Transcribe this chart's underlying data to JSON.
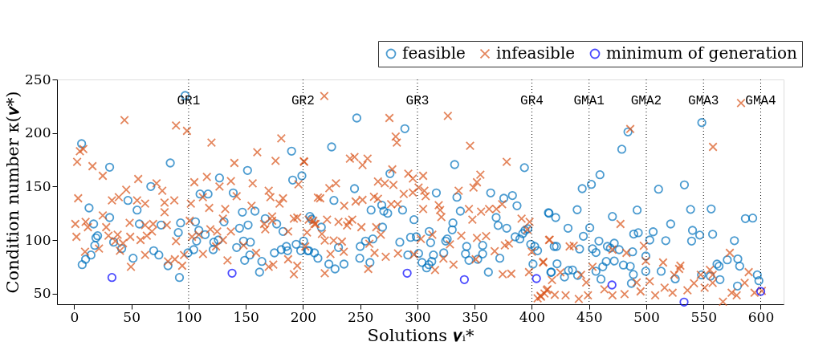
{
  "chart_data": {
    "type": "scatter",
    "xlabel": "Solutions 𝝂ᵢ*",
    "ylabel": "Condition number κ(𝝂*)",
    "xlim": [
      -15,
      620
    ],
    "ylim": [
      40,
      250
    ],
    "xticks": [
      0,
      50,
      100,
      150,
      200,
      250,
      300,
      350,
      400,
      450,
      500,
      550,
      600
    ],
    "yticks": [
      50,
      100,
      150,
      200,
      250
    ],
    "grid": false,
    "legend": "top right",
    "series": [
      {
        "name": "feasible",
        "color": "#0072bd",
        "marker": "circle",
        "x": [
          6.5,
          31,
          84,
          97,
          13,
          47,
          55,
          67,
          57,
          17,
          31,
          20.5,
          19,
          18,
          34.5,
          41.5,
          14.7,
          10,
          7,
          51.5,
          69.5,
          74,
          82,
          92,
          76,
          93,
          91,
          99.5,
          104.5,
          106,
          109,
          107,
          114.5,
          110,
          117,
          122,
          121.5,
          126,
          131,
          127,
          139,
          147,
          144.5,
          151.5,
          152,
          158,
          142,
          148,
          154,
          149,
          153.5,
          164,
          162,
          167,
          177,
          182.5,
          175,
          181,
          185.5,
          186.5,
          190,
          191,
          199,
          194,
          200.5,
          198,
          206,
          205,
          247,
          225,
          289,
          276,
          245,
          227,
          207.5,
          216,
          204,
          210,
          213,
          222.6,
          228,
          235.8,
          231,
          250,
          254.6,
          261,
          249.6,
          258.5,
          259.5,
          268.8,
          270.6,
          274,
          269.5,
          287,
          297,
          284.6,
          294,
          299,
          291.6,
          301,
          304,
          308,
          310,
          312.5,
          314,
          311.5,
          310.3,
          316.5,
          323,
          324.7,
          326,
          331,
          330.4,
          334.5,
          337.5,
          332.5,
          343,
          342,
          345,
          352.7,
          357,
          357,
          362,
          364,
          368.8,
          370.5,
          378,
          372,
          375.5,
          383,
          387,
          385.4,
          389.5,
          392,
          394,
          396.5,
          399,
          402.5,
          405,
          401,
          393.5,
          415,
          419.5,
          417,
          548.5,
          484,
          478.6,
          459.5,
          452,
          444,
          533.3,
          510.7,
          439.6,
          492,
          538.7,
          556.7,
          414.5,
          420.8,
          470.4,
          450.6,
          431.6,
          445,
          521.3,
          540.4,
          546.7,
          558,
          586.6,
          593,
          489,
          493,
          506,
          503,
          517,
          539.6,
          577,
          421.5,
          441.7,
          453,
          456,
          458.6,
          466,
          468.6,
          472,
          476.3,
          472,
          465,
          462,
          488,
          499.6,
          480,
          486,
          488.7,
          487,
          460.4,
          456,
          440,
          435.5,
          432,
          428.5,
          422,
          416.6,
          499.5,
          513,
          525.3,
          561.8,
          563.6,
          564.4,
          570.8,
          580,
          579.7,
          581.6,
          548.3,
          556,
          597,
          598.4
        ],
        "values": [
          190,
          168,
          172,
          235,
          130,
          137,
          128,
          150,
          115,
          115,
          121,
          104,
          102,
          95,
          98,
          92,
          86,
          82,
          77,
          83,
          90,
          86,
          76,
          65,
          114,
          116,
          107,
          88,
          91,
          117,
          109,
          99,
          105,
          143,
          143,
          98,
          91,
          100,
          117,
          158,
          144,
          126,
          111,
          165,
          114,
          127,
          93,
          99,
          98,
          81,
          86,
          80,
          70,
          120,
          115,
          108,
          88,
          91,
          94,
          90,
          183,
          156,
          160,
          96,
          99,
          90,
          122,
          90,
          214,
          187,
          204,
          162,
          148,
          137,
          119.5,
          112,
          90,
          88,
          83,
          77.5,
          73,
          77.5,
          93,
          94,
          99,
          101,
          83,
          79,
          128,
          132.6,
          127,
          125,
          112,
          128,
          119,
          98,
          102.5,
          103,
          86,
          87.5,
          79,
          74,
          77,
          80,
          86,
          97.5,
          108,
          144,
          88,
          99,
          101,
          116,
          109.5,
          140,
          127,
          170.5,
          94,
          87,
          81,
          82,
          87,
          95,
          70,
          144,
          121,
          113.6,
          111,
          83,
          139,
          141.6,
          132,
          103,
          101,
          106,
          109,
          110.5,
          96,
          94,
          90,
          77.5,
          167.6,
          125,
          94,
          70,
          209.7,
          201,
          184.8,
          161,
          152,
          148,
          151.5,
          147.5,
          128.3,
          128,
          128.6,
          129,
          125.5,
          121,
          122,
          111.5,
          111,
          103.5,
          115,
          109,
          104.6,
          105.4,
          120,
          120.5,
          105.6,
          106.8,
          107.7,
          100,
          99.4,
          99,
          99.4,
          94,
          91.6,
          91.8,
          88.3,
          99,
          94,
          92.4,
          97,
          91,
          80.4,
          80,
          75,
          89,
          85,
          76.6,
          75.4,
          67.8,
          59.5,
          63.5,
          70.8,
          66.9,
          72,
          71.6,
          65.4,
          77.8,
          69.8,
          70.8,
          70.8,
          63.7,
          77.5,
          75.6,
          63,
          81.5,
          82.3,
          57,
          75.6,
          67.4,
          66.2,
          67.4,
          62
        ]
      },
      {
        "name": "infeasible",
        "color": "#d95319",
        "marker": "cross",
        "x": [
          2.6,
          3.5,
          1,
          2,
          5,
          8,
          16,
          25,
          44,
          89,
          98.6,
          120,
          181,
          160,
          176,
          201,
          140,
          116,
          105,
          56,
          45.5,
          39,
          33,
          72,
          77,
          87.5,
          79,
          62,
          55,
          102,
          112.5,
          118,
          127,
          137,
          142,
          156,
          170,
          171.5,
          182.5,
          179.5,
          155,
          132,
          195,
          192,
          196,
          10,
          25,
          28,
          12,
          38,
          48.5,
          49,
          62,
          69,
          68,
          63.5,
          58,
          79,
          81,
          89,
          101,
          103,
          109,
          119,
          130,
          125,
          137,
          124,
          130,
          167,
          166,
          173,
          173,
          187,
          203.5,
          42.7,
          36,
          30,
          21.7,
          9.5,
          40,
          49.6,
          62,
          82,
          88,
          94.4,
          96,
          112.6,
          134,
          148,
          159,
          170,
          174,
          187,
          192,
          195,
          209,
          211,
          218.6,
          275.5,
          326.6,
          346,
          281,
          282,
          200.7,
          241,
          245,
          252,
          256.4,
          278,
          292,
          296,
          305,
          265.5,
          271.5,
          279,
          223,
          228.8,
          301,
          306,
          307.2,
          288,
          296,
          336,
          349,
          352,
          355,
          378,
          213,
          215,
          246,
          252,
          262,
          265.5,
          277,
          282.8,
          236,
          305,
          318.6,
          319.8,
          320.9,
          345,
          348,
          355.6,
          362.6,
          369,
          374,
          391,
          398,
          231,
          240,
          243,
          238.5,
          221,
          205,
          210,
          216.5,
          219,
          226.8,
          234,
          251,
          264,
          268,
          258,
          303,
          313,
          328.4,
          338.3,
          352,
          360,
          376.4,
          380,
          396,
          400,
          415,
          202,
          224,
          235.6,
          262.5,
          272.3,
          283,
          297,
          322.7,
          331.5,
          315.4,
          350.9,
          367.5,
          374.5,
          382,
          397.5,
          257,
          219,
          410,
          407.5,
          411,
          413,
          405,
          486,
          558.3,
          477.4,
          415.6,
          433,
          436.6,
          497.8,
          482.7,
          470.4,
          499.6,
          514.7,
          528.7,
          529.8,
          573,
          453,
          409.8,
          417.6,
          413.7,
          408,
          420,
          429.5,
          441,
          449,
          463.4,
          481,
          495,
          503,
          507.8,
          516,
          523,
          536,
          541.7,
          551,
          558,
          567,
          574.6,
          579,
          586,
          594.6,
          601,
          424.9,
          443,
          447.5,
          524.4,
          491.6,
          558,
          589.5,
          470.4,
          555.6,
          547.6,
          582.8
        ],
        "values": [
          173,
          139,
          115,
          103,
          183,
          185,
          169,
          160,
          212,
          207,
          202,
          191,
          195,
          182,
          174,
          173,
          172,
          159,
          154,
          157,
          147,
          140,
          137,
          153,
          146,
          137,
          135,
          134,
          137,
          134,
          140,
          130,
          150,
          155,
          141,
          153,
          146,
          140,
          139,
          134,
          132,
          129,
          121,
          120,
          152,
          117,
          123,
          112,
          112,
          105,
          116,
          103,
          114,
          115,
          108,
          104,
          100,
          126,
          114,
          99,
          118,
          103,
          105,
          110,
          120,
          108,
          108,
          94,
          100,
          110,
          115,
          118,
          122,
          108,
          107,
          97,
          99,
          104,
          92,
          89,
          90,
          75,
          86,
          80,
          82,
          76,
          86,
          87,
          81,
          95,
          88,
          75,
          77,
          82,
          68,
          76,
          118,
          115,
          234.6,
          214,
          216,
          188,
          196.6,
          191,
          173.6,
          176,
          177.6,
          170,
          176,
          166,
          162,
          157.5,
          160,
          154.6,
          153,
          151.5,
          148.5,
          153,
          149,
          146,
          141,
          143,
          144.4,
          146,
          149,
          154,
          161,
          173,
          139.7,
          139,
          136,
          137.5,
          140.4,
          138.5,
          133.5,
          133.5,
          132,
          129,
          132.6,
          128,
          121.5,
          129,
          119,
          126.6,
          129,
          129,
          133.5,
          120,
          117,
          117,
          117,
          119,
          113.6,
          119,
          119,
          115,
          105.7,
          99.6,
          99.6,
          98.5,
          112,
          112,
          105,
          96.6,
          101,
          105,
          96,
          104,
          102,
          103.7,
          95,
          96.7,
          109.6,
          89,
          100,
          94,
          87,
          89,
          88,
          84.4,
          87.5,
          86.5,
          82.7,
          77,
          72,
          82,
          89.6,
          68,
          68.5,
          70,
          73,
          69,
          79.6,
          48,
          50,
          53,
          45.5,
          203.7,
          187,
          115,
          100.3,
          94,
          94.6,
          94.6,
          88,
          91,
          80.4,
          79,
          73,
          76,
          88,
          75,
          79,
          62.6,
          54,
          47,
          48.8,
          48.3,
          45,
          48.3,
          54,
          49.5,
          52,
          61.5,
          48.3,
          55.5,
          50.7,
          53,
          59.6,
          55.5,
          60,
          42.4,
          50.7,
          48.3,
          60,
          50.7,
          52.5,
          69.8,
          67.4,
          60.3,
          67.4,
          60.3,
          67.4,
          70,
          48.3,
          72.2,
          67.4,
          228
        ]
      },
      {
        "name": "minimum of generation",
        "color": "#0000ff",
        "marker": "circle",
        "x": [
          33,
          138,
          291,
          341,
          404,
          470,
          533,
          600
        ],
        "values": [
          65,
          69,
          69,
          63,
          64,
          58,
          42,
          52
        ]
      }
    ],
    "ref_lines": [
      {
        "axis": "x",
        "value": 100,
        "label": "GR1"
      },
      {
        "axis": "x",
        "value": 200,
        "label": "GR2"
      },
      {
        "axis": "x",
        "value": 300,
        "label": "GR3"
      },
      {
        "axis": "x",
        "value": 400,
        "label": "GR4"
      },
      {
        "axis": "x",
        "value": 450,
        "label": "GMA1"
      },
      {
        "axis": "x",
        "value": 500,
        "label": "GMA2"
      },
      {
        "axis": "x",
        "value": 550,
        "label": "GMA3"
      },
      {
        "axis": "x",
        "value": 600,
        "label": "GMA4"
      }
    ],
    "line_style": "dotted"
  }
}
